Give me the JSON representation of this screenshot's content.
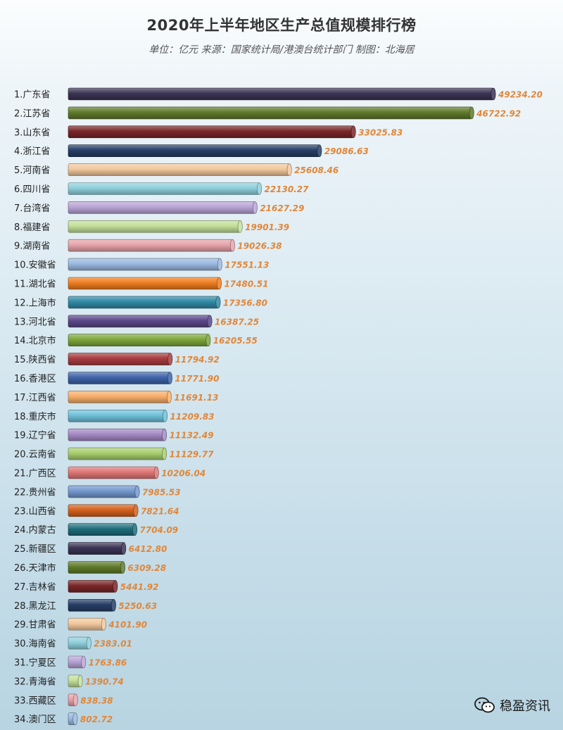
{
  "chart_data": {
    "type": "bar",
    "orientation": "horizontal",
    "title": "2020年上半年地区生产总值规模排行榜",
    "subtitle": "单位：亿元 来源：国家统计局/港澳台统计部门 制图：北海居",
    "categories": [
      "1.广东省",
      "2.江苏省",
      "3.山东省",
      "4.浙江省",
      "5.河南省",
      "6.四川省",
      "7.台湾省",
      "8.福建省",
      "9.湖南省",
      "10.安徽省",
      "11.湖北省",
      "12.上海市",
      "13.河北省",
      "14.北京市",
      "15.陕西省",
      "16.香港区",
      "17.江西省",
      "18.重庆市",
      "19.辽宁省",
      "20.云南省",
      "21.广西区",
      "22.贵州省",
      "23.山西省",
      "24.内蒙古",
      "25.新疆区",
      "26.天津市",
      "27.吉林省",
      "28.黑龙江",
      "29.甘肃省",
      "30.海南省",
      "31.宁夏区",
      "32.青海省",
      "33.西藏区",
      "34.澳门区"
    ],
    "values": [
      49234.2,
      46722.92,
      33025.83,
      29086.63,
      25608.46,
      22130.27,
      21627.29,
      19901.39,
      19026.38,
      17551.13,
      17480.51,
      17356.8,
      16387.25,
      16205.55,
      11794.92,
      11771.9,
      11691.13,
      11209.83,
      11132.49,
      11129.77,
      10206.04,
      7985.53,
      7821.64,
      7704.09,
      6412.8,
      6309.28,
      5441.92,
      5250.63,
      4101.9,
      2383.01,
      1763.86,
      1390.74,
      838.38,
      802.72
    ],
    "value_labels": [
      "49234.20",
      "46722.92",
      "33025.83",
      "29086.63",
      "25608.46",
      "22130.27",
      "21627.29",
      "19901.39",
      "19026.38",
      "17551.13",
      "17480.51",
      "17356.80",
      "16387.25",
      "16205.55",
      "11794.92",
      "11771.90",
      "11691.13",
      "11209.83",
      "11132.49",
      "11129.77",
      "10206.04",
      "7985.53",
      "7821.64",
      "7704.09",
      "6412.80",
      "6309.28",
      "5441.92",
      "5250.63",
      "4101.90",
      "2383.01",
      "1763.86",
      "1390.74",
      "838.38",
      "802.72"
    ],
    "xlim": [
      0,
      49234.2
    ],
    "grid": false,
    "legend": "none",
    "bar_colors": [
      "#3b3454",
      "#5f7a2a",
      "#7a2628",
      "#263e66",
      "#f2c79c",
      "#8fd0dc",
      "#b9a4d6",
      "#c3df99",
      "#e6a3aa",
      "#9ab8e0",
      "#ee7d20",
      "#318aa6",
      "#5b4889",
      "#7ea53a",
      "#a83c3f",
      "#3e63a8",
      "#f8ae6a",
      "#6fc1d9",
      "#a489c4",
      "#a8ce6d",
      "#df7775",
      "#7397ce",
      "#d45f1d",
      "#1e6d7b"
    ]
  },
  "watermark": {
    "text": "稳盈资讯",
    "icon": "wechat-icon"
  }
}
